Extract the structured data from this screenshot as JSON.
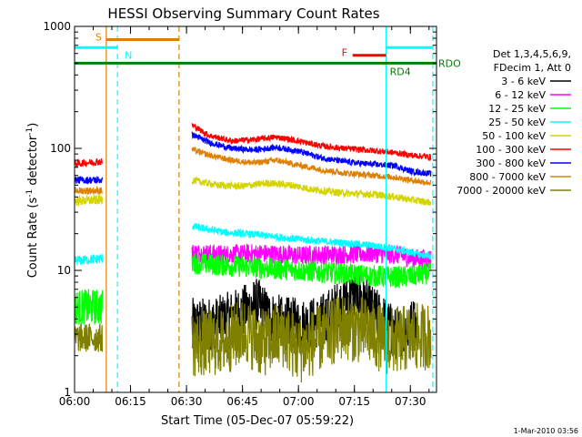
{
  "chart_data": {
    "type": "line",
    "title": "HESSI Observing Summary Count Rates",
    "xlabel": "Start Time (05-Dec-07 05:59:22)",
    "ylabel_main": "Count Rate (s",
    "ylabel_sup1": "-1",
    "ylabel_mid": " detector",
    "ylabel_sup2": "-1",
    "ylabel_end": ")",
    "y_scale": "log",
    "ylim": [
      1,
      1000
    ],
    "xlim_minutes": [
      0,
      97
    ],
    "x_ticks": [
      {
        "t": 0,
        "label": "06:00"
      },
      {
        "t": 15,
        "label": "06:15"
      },
      {
        "t": 30,
        "label": "06:30"
      },
      {
        "t": 45,
        "label": "06:45"
      },
      {
        "t": 60,
        "label": "07:00"
      },
      {
        "t": 75,
        "label": "07:15"
      },
      {
        "t": 90,
        "label": "07:30"
      }
    ],
    "y_ticks": [
      {
        "v": 1,
        "label": "1"
      },
      {
        "v": 10,
        "label": "10"
      },
      {
        "v": 100,
        "label": "100"
      },
      {
        "v": 1000,
        "label": "1000"
      }
    ],
    "legend": {
      "header1": "Det 1,3,4,5,6,9,",
      "header2": "FDecim 1, Att 0",
      "placement": "right"
    },
    "series": [
      {
        "name": "3 - 6 keV",
        "color": "#000000",
        "segments": [
          {
            "t0": 31.5,
            "t1": 91.5,
            "points": [
              [
                31.5,
                3.6
              ],
              [
                38,
                3.7
              ],
              [
                44,
                4.4
              ],
              [
                49,
                5.3
              ],
              [
                52,
                4.2
              ],
              [
                56,
                3.7
              ],
              [
                62,
                3.6
              ],
              [
                66,
                3.8
              ],
              [
                72,
                5.5
              ],
              [
                76,
                6.5
              ],
              [
                79,
                4.8
              ],
              [
                83,
                3.8
              ],
              [
                86,
                3.0
              ],
              [
                89,
                3.3
              ],
              [
                91.5,
                3.8
              ]
            ],
            "noise": 0.22
          }
        ]
      },
      {
        "name": "6 - 12 keV",
        "color": "#ff00ff",
        "segments": [
          {
            "t0": 31.5,
            "t1": 95.5,
            "points": [
              [
                31.5,
                14
              ],
              [
                40,
                13.5
              ],
              [
                50,
                13.8
              ],
              [
                60,
                13.2
              ],
              [
                70,
                13.5
              ],
              [
                80,
                13.8
              ],
              [
                86,
                13.5
              ],
              [
                91,
                12.5
              ],
              [
                95.5,
                12.5
              ]
            ],
            "noise": 0.08
          }
        ]
      },
      {
        "name": "12 - 25 keV",
        "color": "#00ff00",
        "segments": [
          {
            "t0": 0,
            "t1": 7.5,
            "points": [
              [
                0,
                5
              ],
              [
                7.5,
                5
              ]
            ],
            "noise": 0.15
          },
          {
            "t0": 31.5,
            "t1": 95.5,
            "points": [
              [
                31.5,
                11.5
              ],
              [
                40,
                11
              ],
              [
                50,
                10.5
              ],
              [
                60,
                10
              ],
              [
                70,
                9.5
              ],
              [
                80,
                9
              ],
              [
                86,
                8.8
              ],
              [
                91,
                9
              ],
              [
                95.5,
                9.5
              ]
            ],
            "noise": 0.09
          }
        ]
      },
      {
        "name": "25 - 50 keV",
        "color": "#00ffff",
        "segments": [
          {
            "t0": 0,
            "t1": 7.5,
            "points": [
              [
                0,
                12
              ],
              [
                7.5,
                12.5
              ]
            ],
            "noise": 0.04
          },
          {
            "t0": 31.5,
            "t1": 95.5,
            "points": [
              [
                31.5,
                23
              ],
              [
                40,
                20.5
              ],
              [
                50,
                19.5
              ],
              [
                60,
                18
              ],
              [
                70,
                17
              ],
              [
                80,
                16
              ],
              [
                86,
                15
              ],
              [
                90,
                14
              ],
              [
                95.5,
                13
              ]
            ],
            "noise": 0.03
          }
        ]
      },
      {
        "name": "50 - 100 keV",
        "color": "#d4d400",
        "segments": [
          {
            "t0": 0,
            "t1": 7.5,
            "points": [
              [
                0,
                37
              ],
              [
                7.5,
                38
              ]
            ],
            "noise": 0.04
          },
          {
            "t0": 31.5,
            "t1": 95.5,
            "points": [
              [
                31.5,
                55
              ],
              [
                38,
                50
              ],
              [
                45,
                49
              ],
              [
                52,
                52
              ],
              [
                58,
                50
              ],
              [
                64,
                46
              ],
              [
                72,
                43
              ],
              [
                80,
                42
              ],
              [
                86,
                40
              ],
              [
                90,
                38
              ],
              [
                95.5,
                36
              ]
            ],
            "noise": 0.03
          }
        ]
      },
      {
        "name": "100 - 300 keV",
        "color": "#ff0000",
        "segments": [
          {
            "t0": 0,
            "t1": 7.5,
            "points": [
              [
                0,
                75
              ],
              [
                7.5,
                78
              ]
            ],
            "noise": 0.03
          },
          {
            "t0": 31.5,
            "t1": 95.5,
            "points": [
              [
                31.5,
                155
              ],
              [
                36,
                128
              ],
              [
                42,
                115
              ],
              [
                48,
                118
              ],
              [
                54,
                124
              ],
              [
                60,
                115
              ],
              [
                66,
                105
              ],
              [
                72,
                100
              ],
              [
                80,
                96
              ],
              [
                86,
                92
              ],
              [
                90,
                88
              ],
              [
                95.5,
                85
              ]
            ],
            "noise": 0.025
          }
        ]
      },
      {
        "name": "300 - 800 keV",
        "color": "#0000ff",
        "segments": [
          {
            "t0": 0,
            "t1": 7.5,
            "points": [
              [
                0,
                55
              ],
              [
                7.5,
                55
              ]
            ],
            "noise": 0.03
          },
          {
            "t0": 31.5,
            "t1": 95.5,
            "points": [
              [
                31.5,
                130
              ],
              [
                36,
                112
              ],
              [
                42,
                100
              ],
              [
                48,
                97
              ],
              [
                54,
                102
              ],
              [
                60,
                95
              ],
              [
                66,
                84
              ],
              [
                72,
                78
              ],
              [
                80,
                74
              ],
              [
                86,
                72
              ],
              [
                90,
                65
              ],
              [
                95.5,
                62
              ]
            ],
            "noise": 0.025
          }
        ]
      },
      {
        "name": "800 - 7000 keV",
        "color": "#e08000",
        "segments": [
          {
            "t0": 0,
            "t1": 7.5,
            "points": [
              [
                0,
                45
              ],
              [
                7.5,
                45
              ]
            ],
            "noise": 0.03
          },
          {
            "t0": 31.5,
            "t1": 95.5,
            "points": [
              [
                31.5,
                98
              ],
              [
                36,
                88
              ],
              [
                42,
                80
              ],
              [
                48,
                76
              ],
              [
                54,
                80
              ],
              [
                60,
                73
              ],
              [
                66,
                67
              ],
              [
                72,
                63
              ],
              [
                80,
                60
              ],
              [
                86,
                58
              ],
              [
                90,
                55
              ],
              [
                95.5,
                52
              ]
            ],
            "noise": 0.025
          }
        ]
      },
      {
        "name": "7000 - 20000 keV",
        "color": "#808000",
        "segments": [
          {
            "t0": 0,
            "t1": 7.5,
            "points": [
              [
                0,
                2.8
              ],
              [
                7.5,
                2.8
              ]
            ],
            "noise": 0.12
          },
          {
            "t0": 31.5,
            "t1": 95.5,
            "points": [
              [
                31.5,
                2.5
              ],
              [
                40,
                2.6
              ],
              [
                46,
                3.2
              ],
              [
                50,
                2.5
              ],
              [
                56,
                3.0
              ],
              [
                60,
                2.2
              ],
              [
                66,
                2.8
              ],
              [
                72,
                3.5
              ],
              [
                78,
                3.2
              ],
              [
                84,
                2.6
              ],
              [
                90,
                2.8
              ],
              [
                95.5,
                2.9
              ]
            ],
            "noise": 0.28
          }
        ]
      }
    ],
    "flags": [
      {
        "label": "S",
        "color": "#e08000",
        "t0": 8.5,
        "t1": 28.0,
        "level": 780
      },
      {
        "label": "N",
        "color": "#00ffff",
        "t0": 0,
        "t1": 11.5,
        "level": 670
      },
      {
        "label": "F",
        "color": "#ff0000",
        "t0": 74.5,
        "t1": 83.5,
        "level": 580
      },
      {
        "label": "RD4",
        "color": "#008000",
        "t0": 0,
        "t1": 97,
        "level": 500
      },
      {
        "label": "RDO",
        "color": "#008000",
        "t0": 96,
        "t1": 97,
        "level": 500
      }
    ],
    "saa_flag_extra": {
      "color": "#00ffff",
      "t0": 83.5,
      "t1": 96,
      "level": 670
    },
    "vertical_markers": [
      {
        "t": 8.5,
        "color": "#e08000",
        "style": "solid"
      },
      {
        "t": 11.5,
        "color": "#00ffff",
        "style": "dashed"
      },
      {
        "t": 28.0,
        "color": "#e08000",
        "style": "dashed"
      },
      {
        "t": 83.5,
        "color": "#00ffff",
        "style": "solid"
      },
      {
        "t": 96.0,
        "color": "#00ffff",
        "style": "dashed"
      }
    ],
    "footer_stamp": "1-Mar-2010 03:56"
  }
}
